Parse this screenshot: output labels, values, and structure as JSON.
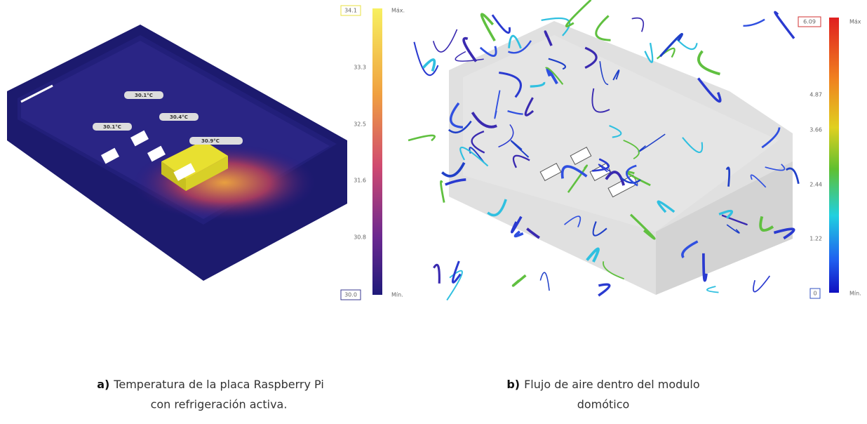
{
  "panel_a": {
    "labels": [
      "30.1°C",
      "30.4°C",
      "30.1°C",
      "30.9°C"
    ],
    "scale": {
      "max": "34.1",
      "max_label": "Máx.",
      "ticks": [
        "33.3",
        "32.5",
        "31.6",
        "30.8"
      ],
      "min": "30.0",
      "min_label": "Mín."
    },
    "caption": {
      "letter": "a)",
      "line1": "Temperatura de la placa Raspberry Pi",
      "line2": "con refrigeración activa."
    }
  },
  "panel_b": {
    "scale": {
      "max": "6.09",
      "max_label": "Máx",
      "ticks": [
        "4.87",
        "3.66",
        "2.44",
        "1.22"
      ],
      "min": "0",
      "min_label": "Mín."
    },
    "caption": {
      "letter": "b)",
      "line1": "Flujo de aire dentro del modulo",
      "line2": "domótico"
    }
  }
}
